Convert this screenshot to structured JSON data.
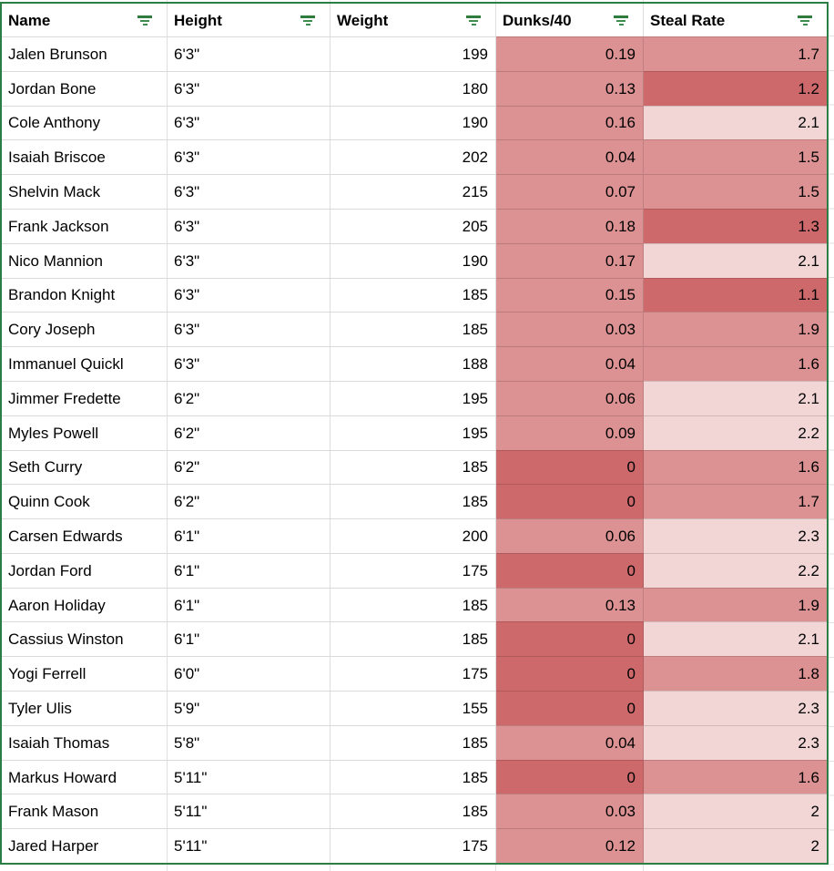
{
  "table": {
    "columns": [
      {
        "label": "Name",
        "align": "left",
        "icon": "filter-funnel"
      },
      {
        "label": "Height",
        "align": "left",
        "icon": "filter-funnel"
      },
      {
        "label": "Weight",
        "align": "right",
        "icon": "filter-funnel"
      },
      {
        "label": "Dunks/40",
        "align": "right",
        "icon": "filter-funnel"
      },
      {
        "label": "Steal Rate",
        "align": "right",
        "icon": "filter-funnel"
      }
    ],
    "rows": [
      {
        "name": "Jalen Brunson",
        "height": "6'3\"",
        "weight": "199",
        "dunks": "0.19",
        "steal": "1.7",
        "dunks_fill": "mid",
        "steal_fill": "mid"
      },
      {
        "name": "Jordan Bone",
        "height": "6'3\"",
        "weight": "180",
        "dunks": "0.13",
        "steal": "1.2",
        "dunks_fill": "mid",
        "steal_fill": "dark"
      },
      {
        "name": "Cole Anthony",
        "height": "6'3\"",
        "weight": "190",
        "dunks": "0.16",
        "steal": "2.1",
        "dunks_fill": "mid",
        "steal_fill": "light"
      },
      {
        "name": "Isaiah Briscoe",
        "height": "6'3\"",
        "weight": "202",
        "dunks": "0.04",
        "steal": "1.5",
        "dunks_fill": "mid",
        "steal_fill": "mid"
      },
      {
        "name": "Shelvin Mack",
        "height": "6'3\"",
        "weight": "215",
        "dunks": "0.07",
        "steal": "1.5",
        "dunks_fill": "mid",
        "steal_fill": "mid"
      },
      {
        "name": "Frank Jackson",
        "height": "6'3\"",
        "weight": "205",
        "dunks": "0.18",
        "steal": "1.3",
        "dunks_fill": "mid",
        "steal_fill": "dark"
      },
      {
        "name": "Nico Mannion",
        "height": "6'3\"",
        "weight": "190",
        "dunks": "0.17",
        "steal": "2.1",
        "dunks_fill": "mid",
        "steal_fill": "light"
      },
      {
        "name": "Brandon Knight",
        "height": "6'3\"",
        "weight": "185",
        "dunks": "0.15",
        "steal": "1.1",
        "dunks_fill": "mid",
        "steal_fill": "dark"
      },
      {
        "name": "Cory Joseph",
        "height": "6'3\"",
        "weight": "185",
        "dunks": "0.03",
        "steal": "1.9",
        "dunks_fill": "mid",
        "steal_fill": "mid"
      },
      {
        "name": "Immanuel Quickl",
        "height": "6'3\"",
        "weight": "188",
        "dunks": "0.04",
        "steal": "1.6",
        "dunks_fill": "mid",
        "steal_fill": "mid"
      },
      {
        "name": "Jimmer Fredette",
        "height": "6'2\"",
        "weight": "195",
        "dunks": "0.06",
        "steal": "2.1",
        "dunks_fill": "mid",
        "steal_fill": "light"
      },
      {
        "name": "Myles Powell",
        "height": "6'2\"",
        "weight": "195",
        "dunks": "0.09",
        "steal": "2.2",
        "dunks_fill": "mid",
        "steal_fill": "light"
      },
      {
        "name": "Seth Curry",
        "height": "6'2\"",
        "weight": "185",
        "dunks": "0",
        "steal": "1.6",
        "dunks_fill": "dark",
        "steal_fill": "mid"
      },
      {
        "name": "Quinn Cook",
        "height": "6'2\"",
        "weight": "185",
        "dunks": "0",
        "steal": "1.7",
        "dunks_fill": "dark",
        "steal_fill": "mid"
      },
      {
        "name": "Carsen Edwards",
        "height": "6'1\"",
        "weight": "200",
        "dunks": "0.06",
        "steal": "2.3",
        "dunks_fill": "mid",
        "steal_fill": "light"
      },
      {
        "name": "Jordan Ford",
        "height": "6'1\"",
        "weight": "175",
        "dunks": "0",
        "steal": "2.2",
        "dunks_fill": "dark",
        "steal_fill": "light"
      },
      {
        "name": "Aaron Holiday",
        "height": "6'1\"",
        "weight": "185",
        "dunks": "0.13",
        "steal": "1.9",
        "dunks_fill": "mid",
        "steal_fill": "mid"
      },
      {
        "name": "Cassius Winston",
        "height": "6'1\"",
        "weight": "185",
        "dunks": "0",
        "steal": "2.1",
        "dunks_fill": "dark",
        "steal_fill": "light"
      },
      {
        "name": "Yogi Ferrell",
        "height": "6'0\"",
        "weight": "175",
        "dunks": "0",
        "steal": "1.8",
        "dunks_fill": "dark",
        "steal_fill": "mid"
      },
      {
        "name": "Tyler Ulis",
        "height": "5'9\"",
        "weight": "155",
        "dunks": "0",
        "steal": "2.3",
        "dunks_fill": "dark",
        "steal_fill": "light"
      },
      {
        "name": "Isaiah Thomas",
        "height": "5'8\"",
        "weight": "185",
        "dunks": "0.04",
        "steal": "2.3",
        "dunks_fill": "mid",
        "steal_fill": "light"
      },
      {
        "name": "Markus Howard",
        "height": "5'11\"",
        "weight": "185",
        "dunks": "0",
        "steal": "1.6",
        "dunks_fill": "dark",
        "steal_fill": "mid"
      },
      {
        "name": "Frank Mason",
        "height": "5'11\"",
        "weight": "185",
        "dunks": "0.03",
        "steal": "2",
        "dunks_fill": "mid",
        "steal_fill": "light"
      },
      {
        "name": "Jared Harper",
        "height": "5'11\"",
        "weight": "175",
        "dunks": "0.12",
        "steal": "2",
        "dunks_fill": "mid",
        "steal_fill": "light"
      }
    ]
  },
  "colors": {
    "green": "#2b7e44",
    "icon_green": "#3f8e51",
    "icon_green_dark": "#2f7c3e",
    "shade_dark": "#cd696b",
    "shade_mid": "#dc9293",
    "shade_light": "#f2d6d6",
    "gridline": "#e2e2e2",
    "text": "#000000"
  }
}
